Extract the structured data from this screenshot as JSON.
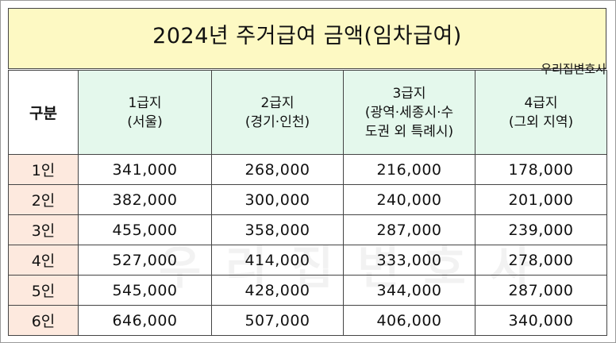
{
  "title": "2024년 주거급여 금액(임차급여)",
  "watermark_small": "우리집변호사",
  "watermark_large": "우리집변호사",
  "table": {
    "corner": "구분",
    "columns": [
      [
        "1급지",
        "(서울)"
      ],
      [
        "2급지",
        "(경기·인천)"
      ],
      [
        "3급지",
        "(광역·세종시·수",
        "도권 외 특례시)"
      ],
      [
        "4급지",
        "(그외 지역)"
      ]
    ],
    "rows": [
      {
        "label": "1인",
        "values": [
          "341,000",
          "268,000",
          "216,000",
          "178,000"
        ]
      },
      {
        "label": "2인",
        "values": [
          "382,000",
          "300,000",
          "240,000",
          "201,000"
        ]
      },
      {
        "label": "3인",
        "values": [
          "455,000",
          "358,000",
          "287,000",
          "239,000"
        ]
      },
      {
        "label": "4인",
        "values": [
          "527,000",
          "414,000",
          "333,000",
          "278,000"
        ]
      },
      {
        "label": "5인",
        "values": [
          "545,000",
          "428,000",
          "344,000",
          "287,000"
        ]
      },
      {
        "label": "6인",
        "values": [
          "646,000",
          "507,000",
          "406,000",
          "340,000"
        ]
      }
    ]
  },
  "colors": {
    "title_bg": "#fdf9c3",
    "header_bg": "#e4f8ec",
    "row_label_bg": "#fde9de",
    "border": "#444444"
  }
}
